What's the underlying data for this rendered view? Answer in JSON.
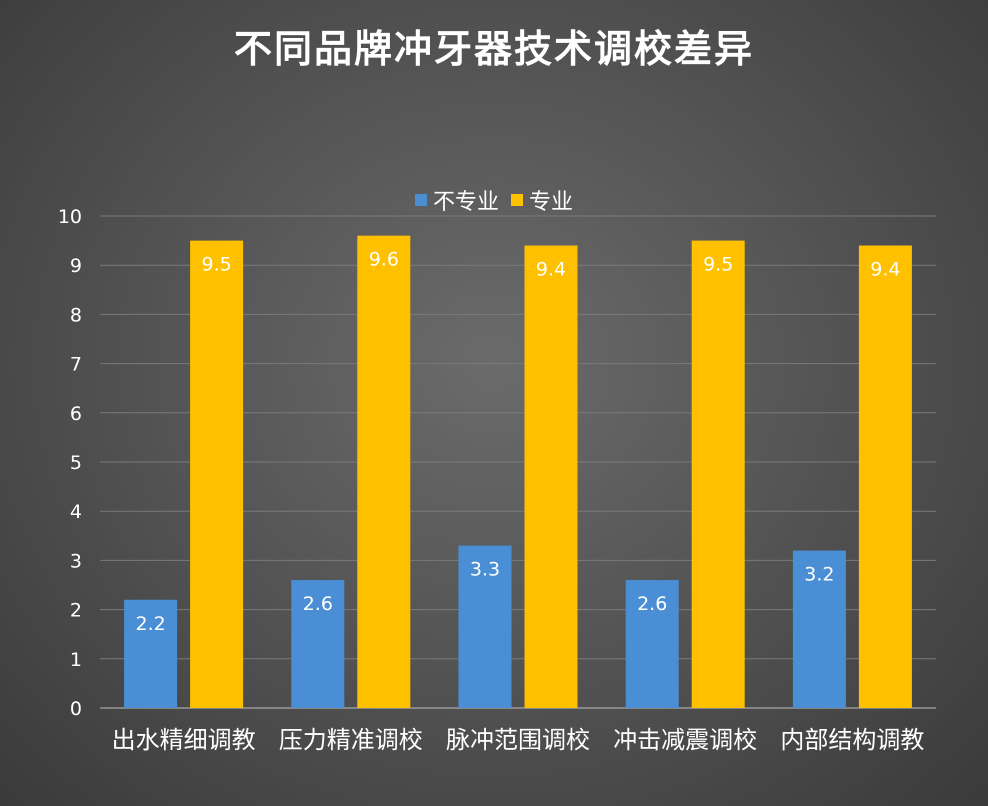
{
  "chart_data": {
    "type": "bar",
    "title": "不同品牌冲牙器技术调校差异",
    "categories": [
      "出水精细调教",
      "压力精准调校",
      "脉冲范围调校",
      "冲击减震调校",
      "内部结构调教"
    ],
    "series": [
      {
        "name": "不专业",
        "values": [
          2.2,
          2.6,
          3.3,
          2.6,
          3.2
        ],
        "color": "#4a8fd6"
      },
      {
        "name": "专业",
        "values": [
          9.5,
          9.6,
          9.4,
          9.5,
          9.4
        ],
        "color": "#ffc000"
      }
    ],
    "ylim": [
      0,
      10
    ],
    "yticks": [
      "0",
      "1",
      "2",
      "3",
      "4",
      "5",
      "6",
      "7",
      "8",
      "9",
      "10"
    ],
    "grid": true,
    "legend_position": "top-center",
    "data_labels": true
  }
}
